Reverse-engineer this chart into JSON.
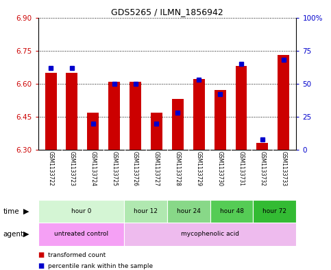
{
  "title": "GDS5265 / ILMN_1856942",
  "samples": [
    "GSM1133722",
    "GSM1133723",
    "GSM1133724",
    "GSM1133725",
    "GSM1133726",
    "GSM1133727",
    "GSM1133728",
    "GSM1133729",
    "GSM1133730",
    "GSM1133731",
    "GSM1133732",
    "GSM1133733"
  ],
  "red_values": [
    6.65,
    6.65,
    6.47,
    6.61,
    6.61,
    6.47,
    6.53,
    6.62,
    6.57,
    6.68,
    6.33,
    6.73
  ],
  "blue_percentiles": [
    62,
    62,
    20,
    50,
    50,
    20,
    28,
    53,
    42,
    65,
    8,
    68
  ],
  "ymin": 6.3,
  "ymax": 6.9,
  "yticks_left": [
    6.3,
    6.45,
    6.6,
    6.75,
    6.9
  ],
  "yticks_right": [
    0,
    25,
    50,
    75,
    100
  ],
  "time_groups": [
    {
      "label": "hour 0",
      "start": 0,
      "end": 4,
      "color": "#d4f5d4"
    },
    {
      "label": "hour 12",
      "start": 4,
      "end": 6,
      "color": "#b0e8b0"
    },
    {
      "label": "hour 24",
      "start": 6,
      "end": 8,
      "color": "#88d888"
    },
    {
      "label": "hour 48",
      "start": 8,
      "end": 10,
      "color": "#55cc55"
    },
    {
      "label": "hour 72",
      "start": 10,
      "end": 12,
      "color": "#33bb33"
    }
  ],
  "agent_groups": [
    {
      "label": "untreated control",
      "start": 0,
      "end": 4,
      "color": "#f5a0f5"
    },
    {
      "label": "mycophenolic acid",
      "start": 4,
      "end": 12,
      "color": "#eebbee"
    }
  ],
  "bar_color": "#cc0000",
  "blue_color": "#0000cc",
  "bar_width": 0.55,
  "background_color": "#ffffff",
  "sample_bg_color": "#c8c8c8",
  "legend_red_label": "transformed count",
  "legend_blue_label": "percentile rank within the sample",
  "right_yaxis_color": "#0000cc",
  "left_yaxis_color": "#cc0000"
}
